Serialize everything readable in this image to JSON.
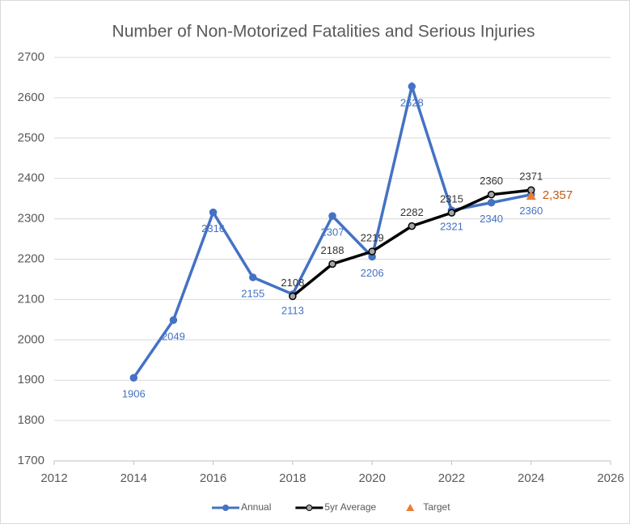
{
  "chart_data": {
    "type": "line",
    "title": "Number of Non-Motorized Fatalities and Serious Injuries",
    "xlim": [
      2012,
      2026
    ],
    "xticks": [
      2012,
      2014,
      2016,
      2018,
      2020,
      2022,
      2024,
      2026
    ],
    "ylim": [
      1700,
      2700
    ],
    "yticks": [
      1700,
      1800,
      1900,
      2000,
      2100,
      2200,
      2300,
      2400,
      2500,
      2600,
      2700
    ],
    "grid": true,
    "legend": "bottom",
    "series": [
      {
        "name": "Annual",
        "color": "#4472c4",
        "marker": "circle",
        "label_color": "#4472c4",
        "label_position": "below",
        "x": [
          2014,
          2015,
          2016,
          2017,
          2018,
          2019,
          2020,
          2021,
          2022,
          2023,
          2024
        ],
        "values": [
          1906,
          2049,
          2316,
          2155,
          2113,
          2307,
          2206,
          2628,
          2321,
          2340,
          2360
        ]
      },
      {
        "name": "5yr Average",
        "color": "#000000",
        "marker": "circle",
        "label_color": "#333333",
        "label_position": "above",
        "x": [
          2018,
          2019,
          2020,
          2021,
          2022,
          2023,
          2024
        ],
        "values": [
          2108,
          2188,
          2219,
          2282,
          2315,
          2360,
          2371
        ]
      },
      {
        "name": "Target",
        "color": "#ed7d31",
        "marker": "triangle",
        "label_color": "#c55a11",
        "label_position": "right",
        "x": [
          2024
        ],
        "values": [
          2357
        ],
        "value_labels": [
          "2,357"
        ]
      }
    ]
  }
}
